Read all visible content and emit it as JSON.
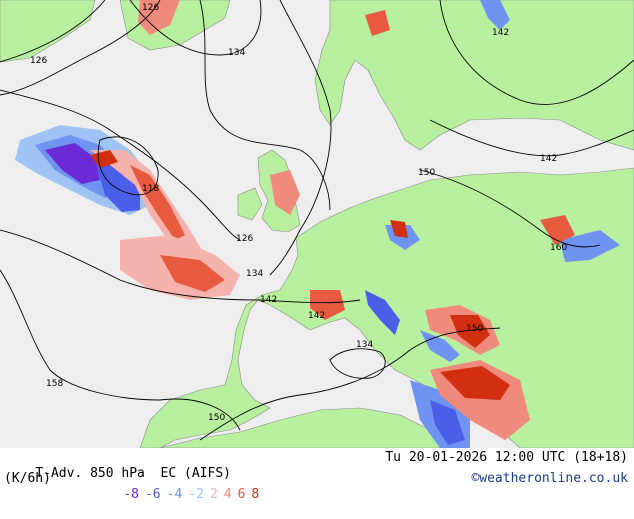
{
  "footer": {
    "product": "T-Adv. 850 hPa",
    "model": "EC (AIFS)",
    "units": "(K/6h)",
    "valid_time": "Tu 20-01-2026 12:00 UTC (18+18)",
    "credit": "©weatheronline.co.uk",
    "scale": [
      {
        "label": "-8",
        "color": "#6a2bd6"
      },
      {
        "label": "-6",
        "color": "#4b5ee8"
      },
      {
        "label": "-4",
        "color": "#6f93f0"
      },
      {
        "label": "-2",
        "color": "#9fc3f5"
      },
      {
        "label": "2",
        "color": "#f6b3ad"
      },
      {
        "label": "4",
        "color": "#f08a7c"
      },
      {
        "label": "6",
        "color": "#e85a40"
      },
      {
        "label": "8",
        "color": "#d22f10"
      }
    ]
  },
  "contour_labels": [
    "126",
    "126",
    "134",
    "142",
    "118",
    "126",
    "134",
    "142",
    "142",
    "150",
    "160",
    "150",
    "134",
    "158",
    "150",
    "142"
  ],
  "colors": {
    "sea": "#eeeeee",
    "land": "#b8f0a0",
    "contour": "#000000",
    "coast": "#9a9a9a"
  }
}
